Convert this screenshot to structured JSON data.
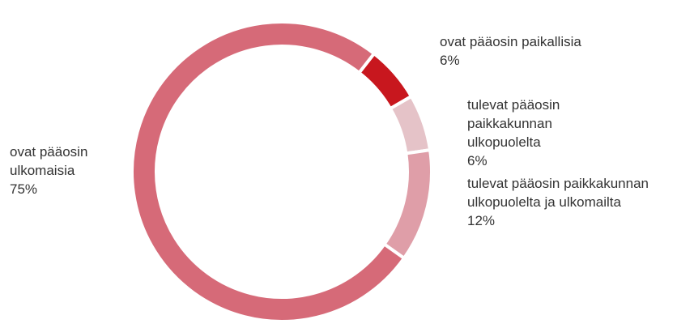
{
  "chart_data": {
    "type": "donut",
    "categories": [
      "ovat pääosin paikallisia",
      "tulevat pääosin paikkakunnan ulkopuolelta",
      "tulevat pääosin paikkakunnan ulkopuolelta ja ulkomailta",
      "ovat pääosin ulkomaisia"
    ],
    "values": [
      6,
      6,
      12,
      75
    ],
    "value_labels": [
      "6%",
      "6%",
      "12%",
      "75%"
    ],
    "colors": [
      "#c8171e",
      "#e5c3c8",
      "#df9ea8",
      "#d66a78"
    ]
  }
}
